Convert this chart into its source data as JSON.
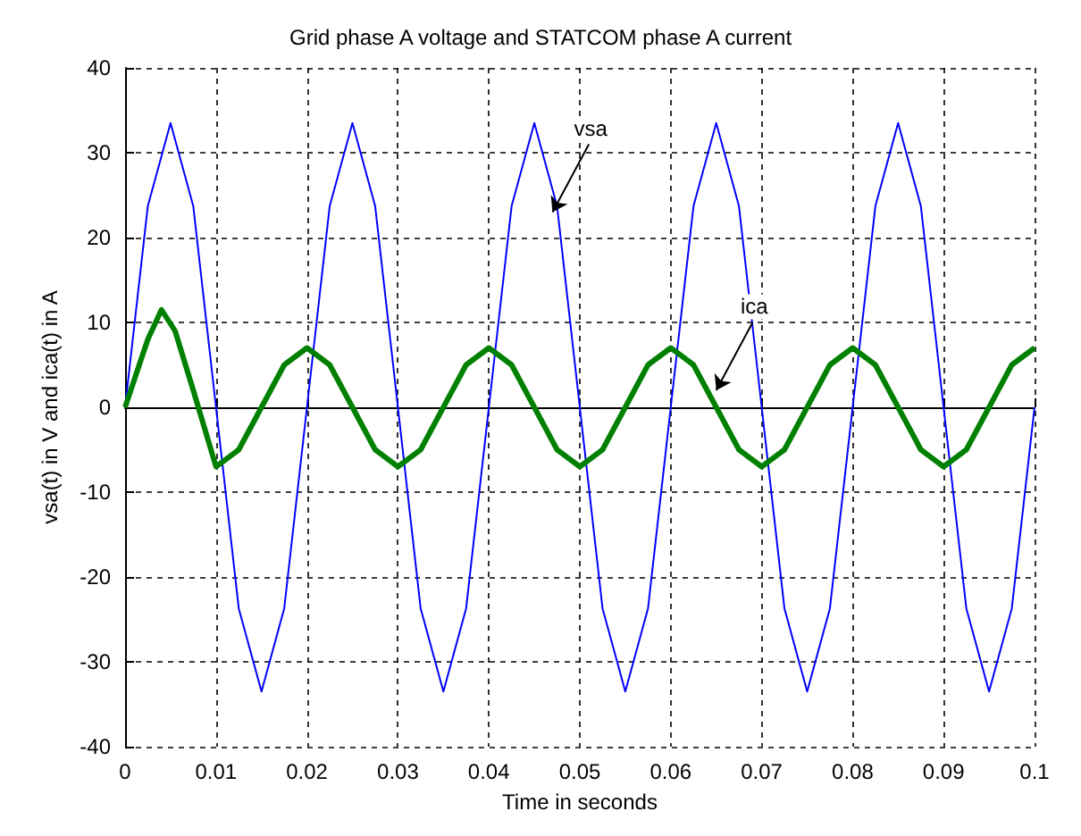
{
  "chart_data": {
    "type": "line",
    "title": "Grid phase A voltage and STATCOM phase A current",
    "xlabel": "Time in seconds",
    "ylabel": "vsa(t) in V and ica(t) in A",
    "xlim": [
      0,
      0.1
    ],
    "xticks": [
      0,
      0.01,
      0.02,
      0.03,
      0.04,
      0.05,
      0.06,
      0.07,
      0.08,
      0.09,
      0.1
    ],
    "ylim": [
      -40,
      40
    ],
    "yticks": [
      -40,
      -30,
      -20,
      -10,
      0,
      10,
      20,
      30,
      40
    ],
    "grid": true,
    "marker": "none",
    "line_style": "solid",
    "annotations": [
      {
        "text": "vsa",
        "x": 0.047,
        "y": 23
      },
      {
        "text": "ica",
        "x": 0.065,
        "y": 2
      }
    ],
    "series": [
      {
        "color": "#0000ff",
        "x": [
          0,
          0.0025,
          0.005,
          0.0075,
          0.01,
          0.0125,
          0.015,
          0.0175,
          0.02,
          0.0225,
          0.025,
          0.0275,
          0.03,
          0.0325,
          0.035,
          0.0375,
          0.04,
          0.0425,
          0.045,
          0.0475,
          0.05,
          0.0525,
          0.055,
          0.0575,
          0.06,
          0.0625,
          0.065,
          0.0675,
          0.07,
          0.0725,
          0.075,
          0.0775,
          0.08,
          0.0825,
          0.085,
          0.0875,
          0.09,
          0.0925,
          0.095,
          0.0975,
          0.1
        ],
        "values": [
          0,
          23.7,
          33.5,
          23.7,
          0,
          -23.7,
          -33.5,
          -23.7,
          0,
          23.7,
          33.5,
          23.7,
          0,
          -23.7,
          -33.5,
          -23.7,
          0,
          23.7,
          33.5,
          23.7,
          0,
          -23.7,
          -33.5,
          -23.7,
          0,
          23.7,
          33.5,
          23.7,
          0,
          -23.7,
          -33.5,
          -23.7,
          0,
          23.7,
          33.5,
          23.7,
          0,
          -23.7,
          -33.5,
          -23.7,
          0
        ]
      },
      {
        "color": "#008000",
        "x": [
          0,
          0.0025,
          0.004,
          0.0055,
          0.0075,
          0.01,
          0.0125,
          0.015,
          0.0175,
          0.02,
          0.0225,
          0.025,
          0.0275,
          0.03,
          0.0325,
          0.035,
          0.0375,
          0.04,
          0.0425,
          0.045,
          0.0475,
          0.05,
          0.0525,
          0.055,
          0.0575,
          0.06,
          0.0625,
          0.065,
          0.0675,
          0.07,
          0.0725,
          0.075,
          0.0775,
          0.08,
          0.0825,
          0.085,
          0.0875,
          0.09,
          0.0925,
          0.095,
          0.0975,
          0.1
        ],
        "values": [
          0,
          8,
          11.5,
          9,
          2,
          -7,
          -5,
          0,
          5,
          7,
          5,
          0,
          -5,
          -7,
          -5,
          0,
          5,
          7,
          5,
          0,
          -5,
          -7,
          -5,
          0,
          5,
          7,
          5,
          0,
          -5,
          -7,
          -5,
          0,
          5,
          7,
          5,
          0,
          -5,
          -7,
          -5,
          0,
          5,
          7
        ]
      }
    ]
  }
}
